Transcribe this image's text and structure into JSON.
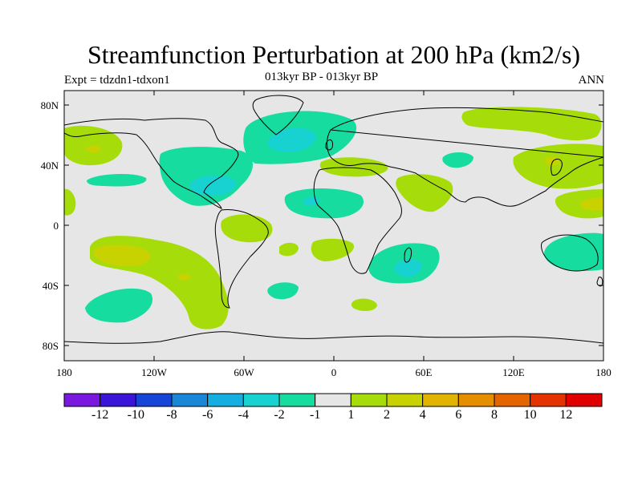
{
  "title": "Streamfunction Perturbation at 200 hPa (km2/s)",
  "subtitle_left": "Expt = tdzdn1-tdxon1",
  "subtitle_center": "013kyr BP - 013kyr BP",
  "subtitle_right": "ANN",
  "map": {
    "lat_ticks": [
      "80N",
      "40N",
      "0",
      "40S",
      "80S"
    ],
    "lon_ticks": [
      "180",
      "120W",
      "60W",
      "0",
      "60E",
      "120E",
      "180"
    ]
  },
  "colorbar": {
    "labels": [
      "-12",
      "-10",
      "-8",
      "-6",
      "-4",
      "-2",
      "-1",
      "1",
      "2",
      "4",
      "6",
      "8",
      "10",
      "12"
    ],
    "colors": [
      "#7a18e0",
      "#3a14d8",
      "#1646d8",
      "#1a86d8",
      "#14aee0",
      "#18d2d2",
      "#16dca0",
      "#e6e6e6",
      "#a6dc0a",
      "#c8d200",
      "#e0b400",
      "#e48e00",
      "#e46400",
      "#e43200",
      "#e00000"
    ]
  },
  "colors": {
    "background": "#e6e6e6",
    "coast": "#000000"
  }
}
